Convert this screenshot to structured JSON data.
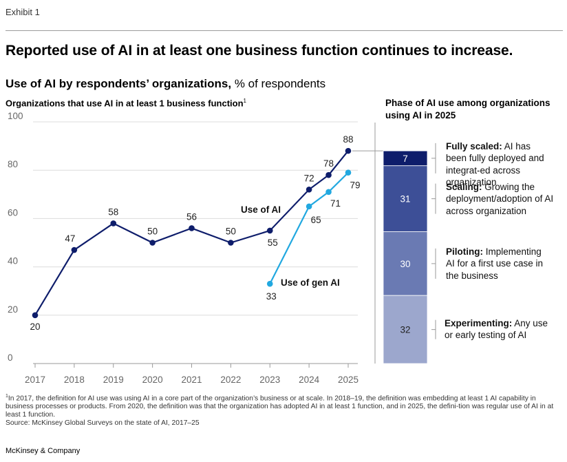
{
  "exhibit": "Exhibit 1",
  "title": "Reported use of AI in at least one business function continues to increase.",
  "subtitle_bold": "Use of AI by respondents’ organizations,",
  "subtitle_rest": " % of respondents",
  "chart_label": "Organizations that use AI in at least 1 business function",
  "chart_label_sup": "1",
  "phase_title": "Phase of AI use among organizations using AI in 2025",
  "chart_data": [
    {
      "type": "line",
      "title": "Organizations that use AI in at least 1 business function",
      "ylim": [
        0,
        100
      ],
      "yticks": [
        0,
        20,
        40,
        60,
        80,
        100
      ],
      "categories": [
        "2017",
        "2018",
        "2019",
        "2020",
        "2021",
        "2022",
        "2023",
        "2024",
        "2025"
      ],
      "grid": true,
      "series": [
        {
          "name": "Use of AI",
          "color": "#0e1d6b",
          "points": [
            {
              "x": 2017,
              "y": 20
            },
            {
              "x": 2018,
              "y": 47
            },
            {
              "x": 2019,
              "y": 58
            },
            {
              "x": 2020,
              "y": 50
            },
            {
              "x": 2021,
              "y": 56
            },
            {
              "x": 2022,
              "y": 50
            },
            {
              "x": 2023,
              "y": 55
            },
            {
              "x": 2024,
              "y": 72
            },
            {
              "x": 2024.5,
              "y": 78
            },
            {
              "x": 2025,
              "y": 88
            }
          ]
        },
        {
          "name": "Use of gen AI",
          "color": "#21a8e0",
          "points": [
            {
              "x": 2023,
              "y": 33
            },
            {
              "x": 2024,
              "y": 65
            },
            {
              "x": 2024.5,
              "y": 71
            },
            {
              "x": 2025,
              "y": 79
            }
          ]
        }
      ]
    },
    {
      "type": "bar",
      "title": "Phase of AI use among organizations using AI in 2025",
      "stacked": true,
      "segments": [
        {
          "value": 7,
          "color": "#0e1d6b",
          "label_bold": "Fully scaled:",
          "label_rest": " AI has been fully deployed and integrat-ed across organization"
        },
        {
          "value": 31,
          "color": "#3d4f97",
          "label_bold": "Scaling:",
          "label_rest": " Growing the deployment/adoption of AI across organization"
        },
        {
          "value": 30,
          "color": "#6a7ab3",
          "label_bold": "Piloting:",
          "label_rest": " Implementing AI for a first use case in the business"
        },
        {
          "value": 32,
          "color": "#9ca7cd",
          "label_bold": "Experimenting:",
          "label_rest": " Any use or early testing of AI"
        }
      ]
    }
  ],
  "footnote_1": "In 2017, the definition for AI use was using AI in a core part of the organization’s business or at scale. In 2018–19, the definition was embedding at least 1 AI capability in business processes or products. From 2020, the definition was that the organization has adopted AI in at least 1 function, and in 2025, the defini-tion was regular use of AI in at least 1 function.",
  "footnote_mark": "1",
  "source": "Source: McKinsey Global Surveys on the state of AI, 2017–25",
  "brand": "McKinsey & Company"
}
